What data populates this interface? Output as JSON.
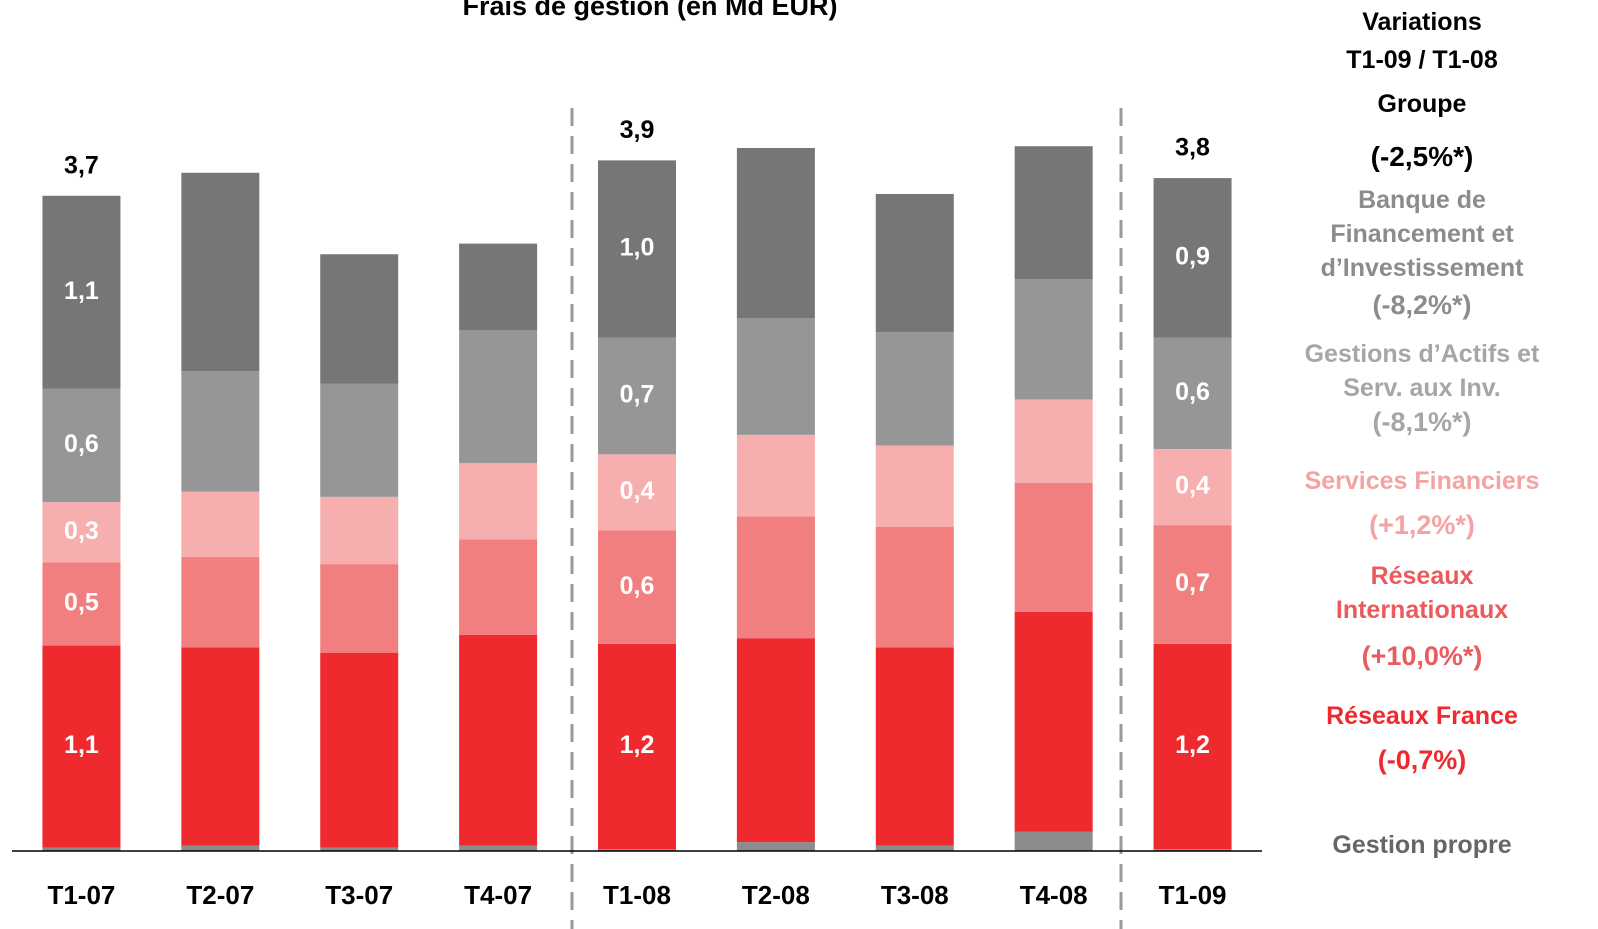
{
  "chart_data": {
    "type": "stacked_bar",
    "title": "Frais de gestion (en Md EUR)",
    "categories": [
      "T1-07",
      "T2-07",
      "T3-07",
      "T4-07",
      "T1-08",
      "T2-08",
      "T3-08",
      "T4-08",
      "T1-09"
    ],
    "ylim": [
      0,
      4.8
    ],
    "totals": [
      3.7,
      null,
      null,
      null,
      3.9,
      null,
      null,
      null,
      3.8
    ],
    "total_labels": [
      "3,7",
      null,
      null,
      null,
      "3,9",
      null,
      null,
      null,
      "3,8"
    ],
    "variation_title": [
      "Variations",
      "T1-09 / T1-08"
    ],
    "group_label": "Groupe",
    "group_variation": "(-2,5%*)",
    "series": [
      {
        "name": "Gestion propre",
        "color": "#8c8c8c",
        "text_color": "#666666",
        "values": [
          0.02,
          0.03,
          0.02,
          0.03,
          0.01,
          0.05,
          0.03,
          0.11,
          0.01
        ]
      },
      {
        "name": "Réseaux France",
        "color": "#ee2a2e",
        "text_color": "#ee2a2e",
        "variation": "(-0,7%)",
        "values": [
          1.14,
          1.12,
          1.1,
          1.19,
          1.16,
          1.15,
          1.12,
          1.24,
          1.16
        ],
        "value_labels": [
          "1,1",
          null,
          null,
          null,
          "1,2",
          null,
          null,
          null,
          "1,2"
        ]
      },
      {
        "name": "Réseaux Internationaux",
        "color": "#f17f7f",
        "text_color": "#eb5a5c",
        "variation": "(+10,0%*)",
        "values": [
          0.47,
          0.51,
          0.5,
          0.54,
          0.64,
          0.69,
          0.68,
          0.73,
          0.67
        ],
        "value_labels": [
          "0,5",
          null,
          null,
          null,
          "0,6",
          null,
          null,
          null,
          "0,7"
        ]
      },
      {
        "name": "Services Financiers",
        "color": "#f7aeae",
        "text_color": "#f4a3a3",
        "variation": "(+1,2%*)",
        "values": [
          0.34,
          0.37,
          0.38,
          0.43,
          0.43,
          0.46,
          0.46,
          0.47,
          0.43
        ],
        "value_labels": [
          "0,3",
          null,
          null,
          null,
          "0,4",
          null,
          null,
          null,
          "0,4"
        ]
      },
      {
        "name": "Gestions d’Actifs et Serv. aux Inv.",
        "color": "#969696",
        "text_color": "#a6a6a6",
        "variation": "(-8,1%*)",
        "values": [
          0.64,
          0.68,
          0.64,
          0.75,
          0.66,
          0.66,
          0.64,
          0.68,
          0.63
        ],
        "value_labels": [
          "0,6",
          null,
          null,
          null,
          "0,7",
          null,
          null,
          null,
          "0,6"
        ]
      },
      {
        "name": "Banque de Financement et d’Investissement",
        "color": "#767676",
        "text_color": "#8c8c8c",
        "variation": "(-8,2%*)",
        "values": [
          1.09,
          1.12,
          0.73,
          0.49,
          1.0,
          0.96,
          0.78,
          0.75,
          0.9
        ],
        "value_labels": [
          "1,1",
          null,
          null,
          null,
          "1,0",
          null,
          null,
          null,
          "0,9"
        ]
      }
    ]
  }
}
